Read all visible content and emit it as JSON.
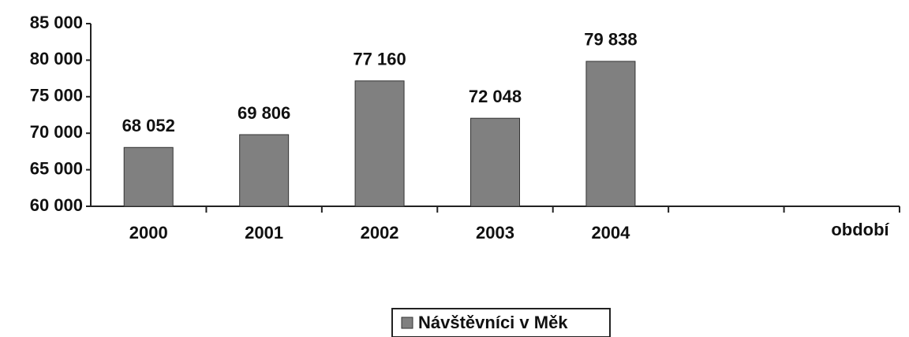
{
  "chart_data": {
    "type": "bar",
    "categories": [
      "2000",
      "2001",
      "2002",
      "2003",
      "2004"
    ],
    "x_label": "období",
    "series": [
      {
        "name": "Návštěvníci v Měk",
        "color": "#808080",
        "values": [
          68052,
          69806,
          77160,
          72048,
          79838
        ],
        "value_labels": [
          "68 052",
          "69 806",
          "77 160",
          "72 048",
          "79 838"
        ]
      }
    ],
    "ylim": [
      60000,
      85000
    ],
    "yticks": [
      {
        "value": 60000,
        "label": "60 000"
      },
      {
        "value": 65000,
        "label": "65 000"
      },
      {
        "value": 70000,
        "label": "70 000"
      },
      {
        "value": 75000,
        "label": "75 000"
      },
      {
        "value": 80000,
        "label": "80 000"
      },
      {
        "value": 85000,
        "label": "85 000"
      }
    ],
    "grid": false,
    "legend": "bottom"
  }
}
